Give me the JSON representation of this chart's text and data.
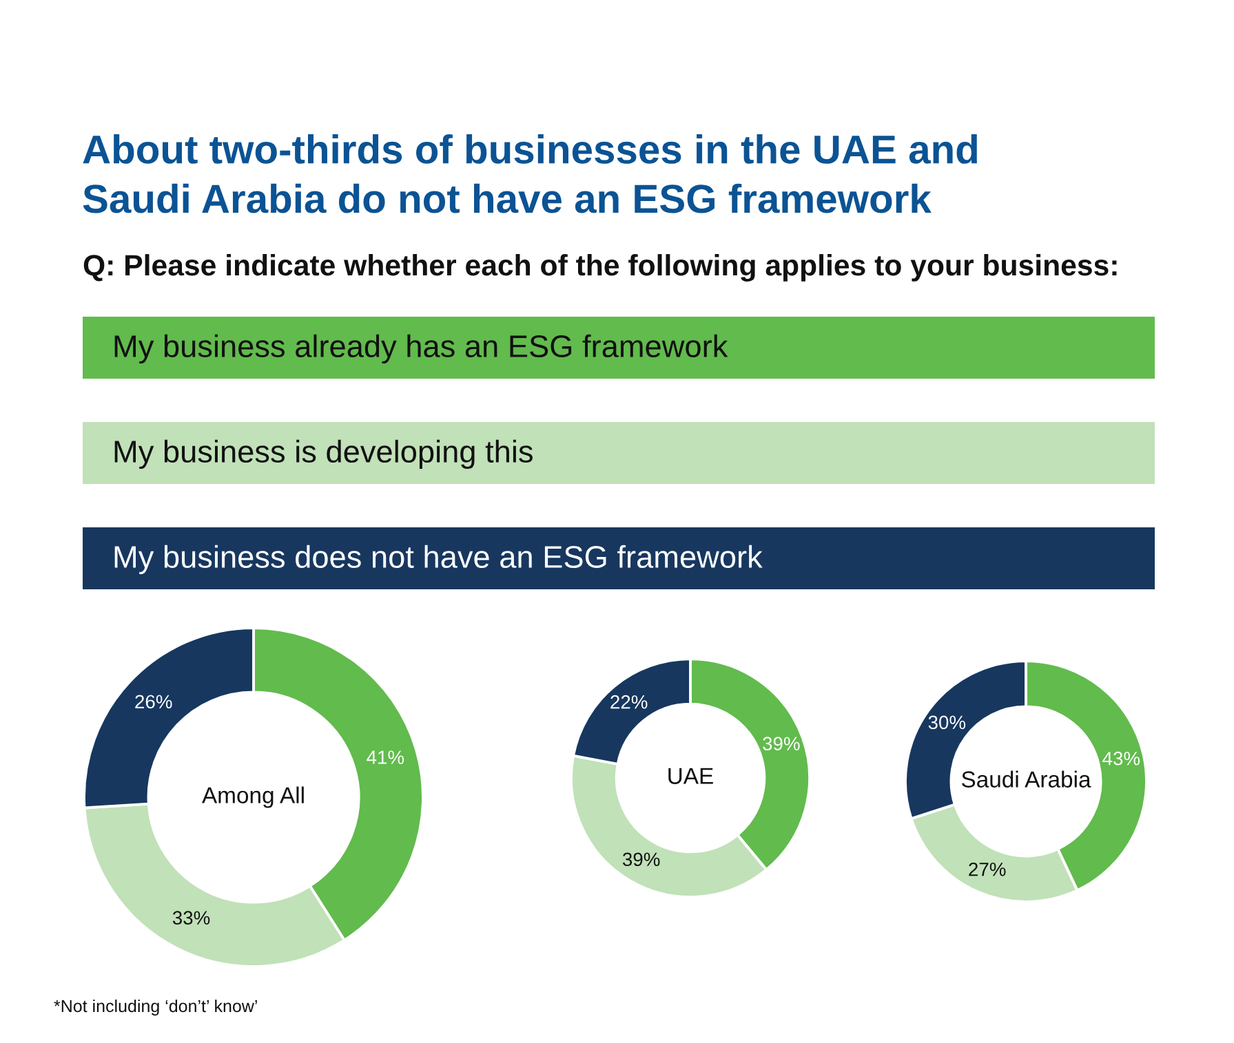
{
  "chart_data": {
    "type": "donut",
    "title": "About two-thirds of businesses in the UAE and\nSaudi Arabia do not have an ESG framework",
    "subtitle": "Q: Please indicate whether each of the following applies to your business:",
    "categories": [
      "My business already has an ESG framework",
      "My business is developing this",
      "My business does not have an ESG framework"
    ],
    "colors": [
      "#62bb4d",
      "#c1e1b8",
      "#17375f"
    ],
    "series": [
      {
        "name": "Among All",
        "values": [
          41,
          33,
          26
        ],
        "value_labels": [
          "41%",
          "33%",
          "26%"
        ]
      },
      {
        "name": "UAE",
        "values": [
          39,
          39,
          22
        ],
        "value_labels": [
          "39%",
          "39%",
          "22%"
        ]
      },
      {
        "name": "Saudi Arabia",
        "values": [
          43,
          27,
          30
        ],
        "value_labels": [
          "43%",
          "27%",
          "30%"
        ]
      }
    ],
    "legend": "top",
    "annotations": [
      "*Not including ‘don’t’ know’"
    ]
  }
}
